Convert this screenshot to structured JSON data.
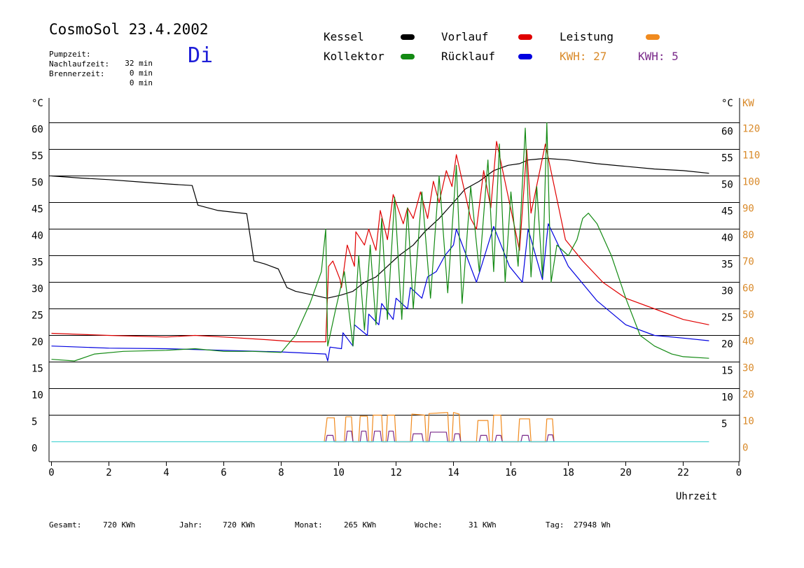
{
  "header": {
    "title": "CosmoSol 23.4.2002",
    "day": "Di",
    "info": [
      {
        "label": "Pumpzeit:",
        "value": "32 min"
      },
      {
        "label": "Nachlaufzeit:",
        "value": "0 min"
      },
      {
        "label": "Brennerzeit:",
        "value": "0 min"
      }
    ]
  },
  "legend": {
    "items": [
      {
        "label": "Kessel",
        "color": "#000000"
      },
      {
        "label": "Vorlauf",
        "color": "#e00000"
      },
      {
        "label": "Leistung",
        "color": "#f08a1e"
      },
      {
        "label": "Kollektor",
        "color": "#138a13"
      },
      {
        "label": "Rücklauf",
        "color": "#0000e0"
      }
    ],
    "kwh": [
      {
        "text": "KWH: 27",
        "color": "#d98a2a"
      },
      {
        "text": "KWH: 5",
        "color": "#7a2a8a"
      }
    ]
  },
  "footer": {
    "items": [
      {
        "label": "Gesamt:",
        "value": "720 KWh"
      },
      {
        "label": "Jahr:",
        "value": "720 KWh"
      },
      {
        "label": "Monat:",
        "value": "265 KWh"
      },
      {
        "label": "Woche:",
        "value": "31 KWh"
      },
      {
        "label": "Tag:",
        "value": "27948 Wh"
      }
    ]
  },
  "chart_data": {
    "type": "line",
    "xlabel": "Uhrzeit",
    "ylabel_left": "°C",
    "ylabel_right_temp": "°C",
    "ylabel_right_power": "KW",
    "xlim": [
      0,
      24
    ],
    "ylim": [
      -4,
      65
    ],
    "grid": "horizontal",
    "x_ticks": [
      "0",
      "2",
      "4",
      "6",
      "8",
      "10",
      "12",
      "14",
      "16",
      "18",
      "20",
      "22",
      "0"
    ],
    "y_ticks_left": [
      "0",
      "5",
      "10",
      "15",
      "20",
      "25",
      "30",
      "35",
      "40",
      "45",
      "50",
      "55",
      "60"
    ],
    "y_ticks_right_temp": [
      "",
      "5",
      "10",
      "15",
      "20",
      "25",
      "30",
      "35",
      "40",
      "45",
      "50",
      "55",
      "60"
    ],
    "y_ticks_right_power": [
      "0",
      "10",
      "20",
      "30",
      "40",
      "50",
      "60",
      "70",
      "80",
      "90",
      "100",
      "110",
      "120"
    ],
    "series": [
      {
        "name": "Kessel",
        "color": "#000000",
        "points": [
          [
            0,
            50
          ],
          [
            1,
            49.6
          ],
          [
            2,
            49.3
          ],
          [
            3,
            48.9
          ],
          [
            4,
            48.5
          ],
          [
            4.9,
            48.2
          ],
          [
            5.1,
            44.5
          ],
          [
            5.8,
            43.5
          ],
          [
            6.8,
            42.9
          ],
          [
            7.05,
            34
          ],
          [
            7.4,
            33.5
          ],
          [
            7.9,
            32.5
          ],
          [
            8.2,
            29
          ],
          [
            8.5,
            28.3
          ],
          [
            9.1,
            27.6
          ],
          [
            9.6,
            27
          ],
          [
            10.1,
            27.6
          ],
          [
            10.5,
            28.3
          ],
          [
            10.9,
            30
          ],
          [
            11.3,
            31
          ],
          [
            11.7,
            33
          ],
          [
            12.1,
            35
          ],
          [
            12.6,
            37
          ],
          [
            13,
            39.5
          ],
          [
            13.5,
            42
          ],
          [
            14,
            45
          ],
          [
            14.4,
            47.5
          ],
          [
            14.9,
            49
          ],
          [
            15.4,
            51
          ],
          [
            15.9,
            52
          ],
          [
            16.3,
            52.3
          ],
          [
            16.6,
            53
          ],
          [
            17.2,
            53.3
          ],
          [
            18,
            53
          ],
          [
            19,
            52.3
          ],
          [
            20,
            51.8
          ],
          [
            21,
            51.3
          ],
          [
            22,
            51
          ],
          [
            22.9,
            50.5
          ]
        ]
      },
      {
        "name": "Vorlauf",
        "color": "#e00000",
        "points": [
          [
            0,
            20.4
          ],
          [
            2,
            20
          ],
          [
            4,
            19.7
          ],
          [
            5,
            20
          ],
          [
            6,
            19.7
          ],
          [
            7.5,
            19.2
          ],
          [
            8.5,
            18.8
          ],
          [
            9.55,
            18.8
          ],
          [
            9.65,
            33
          ],
          [
            9.8,
            34
          ],
          [
            10.05,
            30.5
          ],
          [
            10.1,
            29
          ],
          [
            10.3,
            37
          ],
          [
            10.55,
            33
          ],
          [
            10.6,
            39.5
          ],
          [
            10.9,
            37
          ],
          [
            11.05,
            40
          ],
          [
            11.3,
            36
          ],
          [
            11.45,
            43.5
          ],
          [
            11.7,
            38
          ],
          [
            11.9,
            46.5
          ],
          [
            12.25,
            41
          ],
          [
            12.4,
            44
          ],
          [
            12.6,
            42
          ],
          [
            12.85,
            47
          ],
          [
            13.1,
            42
          ],
          [
            13.3,
            49
          ],
          [
            13.5,
            45
          ],
          [
            13.75,
            51
          ],
          [
            13.95,
            48
          ],
          [
            14.1,
            54
          ],
          [
            14.6,
            42
          ],
          [
            14.8,
            40
          ],
          [
            15.05,
            51
          ],
          [
            15.3,
            44
          ],
          [
            15.5,
            56.5
          ],
          [
            16.3,
            36
          ],
          [
            16.55,
            55
          ],
          [
            16.7,
            43
          ],
          [
            17.2,
            56
          ],
          [
            17.9,
            38
          ],
          [
            18.5,
            34
          ],
          [
            19.2,
            30
          ],
          [
            20,
            27
          ],
          [
            21,
            25
          ],
          [
            22,
            23
          ],
          [
            22.9,
            22
          ]
        ]
      },
      {
        "name": "Rücklauf",
        "color": "#0000e0",
        "points": [
          [
            0,
            18
          ],
          [
            2,
            17.6
          ],
          [
            4,
            17.5
          ],
          [
            6,
            17.2
          ],
          [
            8,
            16.9
          ],
          [
            9.55,
            16.5
          ],
          [
            9.62,
            15.2
          ],
          [
            9.7,
            17.8
          ],
          [
            10.1,
            17.5
          ],
          [
            10.15,
            20.5
          ],
          [
            10.5,
            18
          ],
          [
            10.55,
            22
          ],
          [
            11,
            20
          ],
          [
            11.05,
            24
          ],
          [
            11.4,
            22
          ],
          [
            11.5,
            26
          ],
          [
            11.9,
            23
          ],
          [
            12,
            27
          ],
          [
            12.4,
            25
          ],
          [
            12.5,
            29
          ],
          [
            12.9,
            27
          ],
          [
            13.1,
            31
          ],
          [
            13.4,
            32
          ],
          [
            13.7,
            35
          ],
          [
            14,
            37
          ],
          [
            14.1,
            40
          ],
          [
            14.8,
            30
          ],
          [
            15.4,
            40.5
          ],
          [
            15.95,
            33
          ],
          [
            16.4,
            30
          ],
          [
            16.6,
            40
          ],
          [
            17.1,
            30.5
          ],
          [
            17.3,
            41
          ],
          [
            18,
            33
          ],
          [
            19,
            26.5
          ],
          [
            20,
            22
          ],
          [
            21,
            20
          ],
          [
            22,
            19.5
          ],
          [
            22.9,
            19
          ]
        ]
      },
      {
        "name": "Kollektor",
        "color": "#138a13",
        "points": [
          [
            0,
            15.5
          ],
          [
            0.8,
            15.2
          ],
          [
            1.5,
            16.5
          ],
          [
            2.5,
            17
          ],
          [
            4,
            17.2
          ],
          [
            5,
            17.5
          ],
          [
            6,
            17
          ],
          [
            7,
            17
          ],
          [
            8,
            16.8
          ],
          [
            8.5,
            20
          ],
          [
            9,
            26
          ],
          [
            9.4,
            32
          ],
          [
            9.55,
            40
          ],
          [
            9.62,
            18
          ],
          [
            9.9,
            25
          ],
          [
            10.2,
            32
          ],
          [
            10.5,
            18
          ],
          [
            10.7,
            35
          ],
          [
            10.9,
            21
          ],
          [
            11.1,
            37
          ],
          [
            11.3,
            22
          ],
          [
            11.5,
            42
          ],
          [
            11.7,
            23
          ],
          [
            11.95,
            46
          ],
          [
            12.2,
            23
          ],
          [
            12.4,
            44
          ],
          [
            12.6,
            25
          ],
          [
            12.9,
            47
          ],
          [
            13.2,
            27
          ],
          [
            13.5,
            50
          ],
          [
            13.8,
            28
          ],
          [
            14.1,
            52
          ],
          [
            14.3,
            26
          ],
          [
            14.6,
            48
          ],
          [
            14.9,
            32
          ],
          [
            15.2,
            53
          ],
          [
            15.4,
            32
          ],
          [
            15.6,
            56
          ],
          [
            15.8,
            30
          ],
          [
            16,
            47
          ],
          [
            16.25,
            33
          ],
          [
            16.5,
            59
          ],
          [
            16.7,
            31
          ],
          [
            16.9,
            48
          ],
          [
            17.1,
            31
          ],
          [
            17.25,
            60
          ],
          [
            17.4,
            30
          ],
          [
            17.6,
            37
          ],
          [
            17.8,
            36
          ],
          [
            18,
            35
          ],
          [
            18.3,
            38
          ],
          [
            18.5,
            42
          ],
          [
            18.7,
            43
          ],
          [
            19,
            41
          ],
          [
            19.5,
            35
          ],
          [
            20,
            27
          ],
          [
            20.5,
            20
          ],
          [
            21,
            18
          ],
          [
            21.6,
            16.5
          ],
          [
            22,
            16
          ],
          [
            22.9,
            15.7
          ]
        ]
      },
      {
        "name": "Leistung",
        "color": "#f08a1e",
        "points": [
          [
            9.5,
            0
          ],
          [
            9.6,
            4.5
          ],
          [
            9.85,
            4.5
          ],
          [
            9.9,
            0
          ],
          [
            10.2,
            0
          ],
          [
            10.25,
            4.7
          ],
          [
            10.45,
            4.7
          ],
          [
            10.5,
            0
          ],
          [
            10.7,
            0
          ],
          [
            10.75,
            4.8
          ],
          [
            11,
            4.8
          ],
          [
            11.05,
            0
          ],
          [
            11.15,
            0
          ],
          [
            11.2,
            5
          ],
          [
            11.5,
            5
          ],
          [
            11.55,
            0
          ],
          [
            11.65,
            0
          ],
          [
            11.7,
            5
          ],
          [
            11.95,
            5
          ],
          [
            12,
            0
          ],
          [
            12.5,
            0
          ],
          [
            12.55,
            5.2
          ],
          [
            13,
            5
          ],
          [
            13.05,
            0
          ],
          [
            13.1,
            0
          ],
          [
            13.15,
            5.3
          ],
          [
            13.8,
            5.5
          ],
          [
            13.85,
            0
          ],
          [
            13.95,
            0
          ],
          [
            14,
            5.5
          ],
          [
            14.2,
            5.2
          ],
          [
            14.25,
            0
          ],
          [
            14.8,
            0
          ],
          [
            14.85,
            4
          ],
          [
            15.2,
            4
          ],
          [
            15.25,
            0
          ],
          [
            15.35,
            0
          ],
          [
            15.4,
            5
          ],
          [
            15.65,
            5
          ],
          [
            15.7,
            0
          ],
          [
            16.25,
            0
          ],
          [
            16.3,
            4.3
          ],
          [
            16.65,
            4.3
          ],
          [
            16.7,
            0
          ],
          [
            17.2,
            0
          ],
          [
            17.25,
            4.3
          ],
          [
            17.45,
            4.3
          ],
          [
            17.5,
            0
          ]
        ]
      },
      {
        "name": "Leistung-Rücklauf",
        "color": "#7a2a8a",
        "points": [
          [
            9.55,
            0
          ],
          [
            9.6,
            1.2
          ],
          [
            9.8,
            1.2
          ],
          [
            9.85,
            0
          ],
          [
            10.25,
            0
          ],
          [
            10.3,
            2
          ],
          [
            10.45,
            2
          ],
          [
            10.5,
            0
          ],
          [
            10.75,
            0
          ],
          [
            10.8,
            2
          ],
          [
            10.95,
            2
          ],
          [
            11,
            0
          ],
          [
            11.2,
            0
          ],
          [
            11.25,
            2
          ],
          [
            11.45,
            2
          ],
          [
            11.5,
            0
          ],
          [
            11.7,
            0
          ],
          [
            11.75,
            2
          ],
          [
            11.9,
            2
          ],
          [
            11.95,
            0
          ],
          [
            12.55,
            0
          ],
          [
            12.6,
            1.5
          ],
          [
            12.9,
            1.5
          ],
          [
            12.95,
            0
          ],
          [
            13.15,
            0
          ],
          [
            13.2,
            1.8
          ],
          [
            13.75,
            1.8
          ],
          [
            13.8,
            0
          ],
          [
            14,
            0
          ],
          [
            14.05,
            1.5
          ],
          [
            14.2,
            1.5
          ],
          [
            14.25,
            0
          ],
          [
            14.9,
            0
          ],
          [
            14.95,
            1.2
          ],
          [
            15.15,
            1.2
          ],
          [
            15.2,
            0
          ],
          [
            15.45,
            0
          ],
          [
            15.5,
            1.2
          ],
          [
            15.65,
            1.2
          ],
          [
            15.7,
            0
          ],
          [
            16.35,
            0
          ],
          [
            16.4,
            1.2
          ],
          [
            16.6,
            1.2
          ],
          [
            16.65,
            0
          ],
          [
            17.25,
            0
          ],
          [
            17.3,
            1.3
          ],
          [
            17.45,
            1.3
          ],
          [
            17.5,
            0
          ]
        ]
      },
      {
        "name": "Nulllinie",
        "color": "#4fd6d6",
        "points": [
          [
            0,
            0
          ],
          [
            22.9,
            0
          ]
        ]
      }
    ]
  }
}
